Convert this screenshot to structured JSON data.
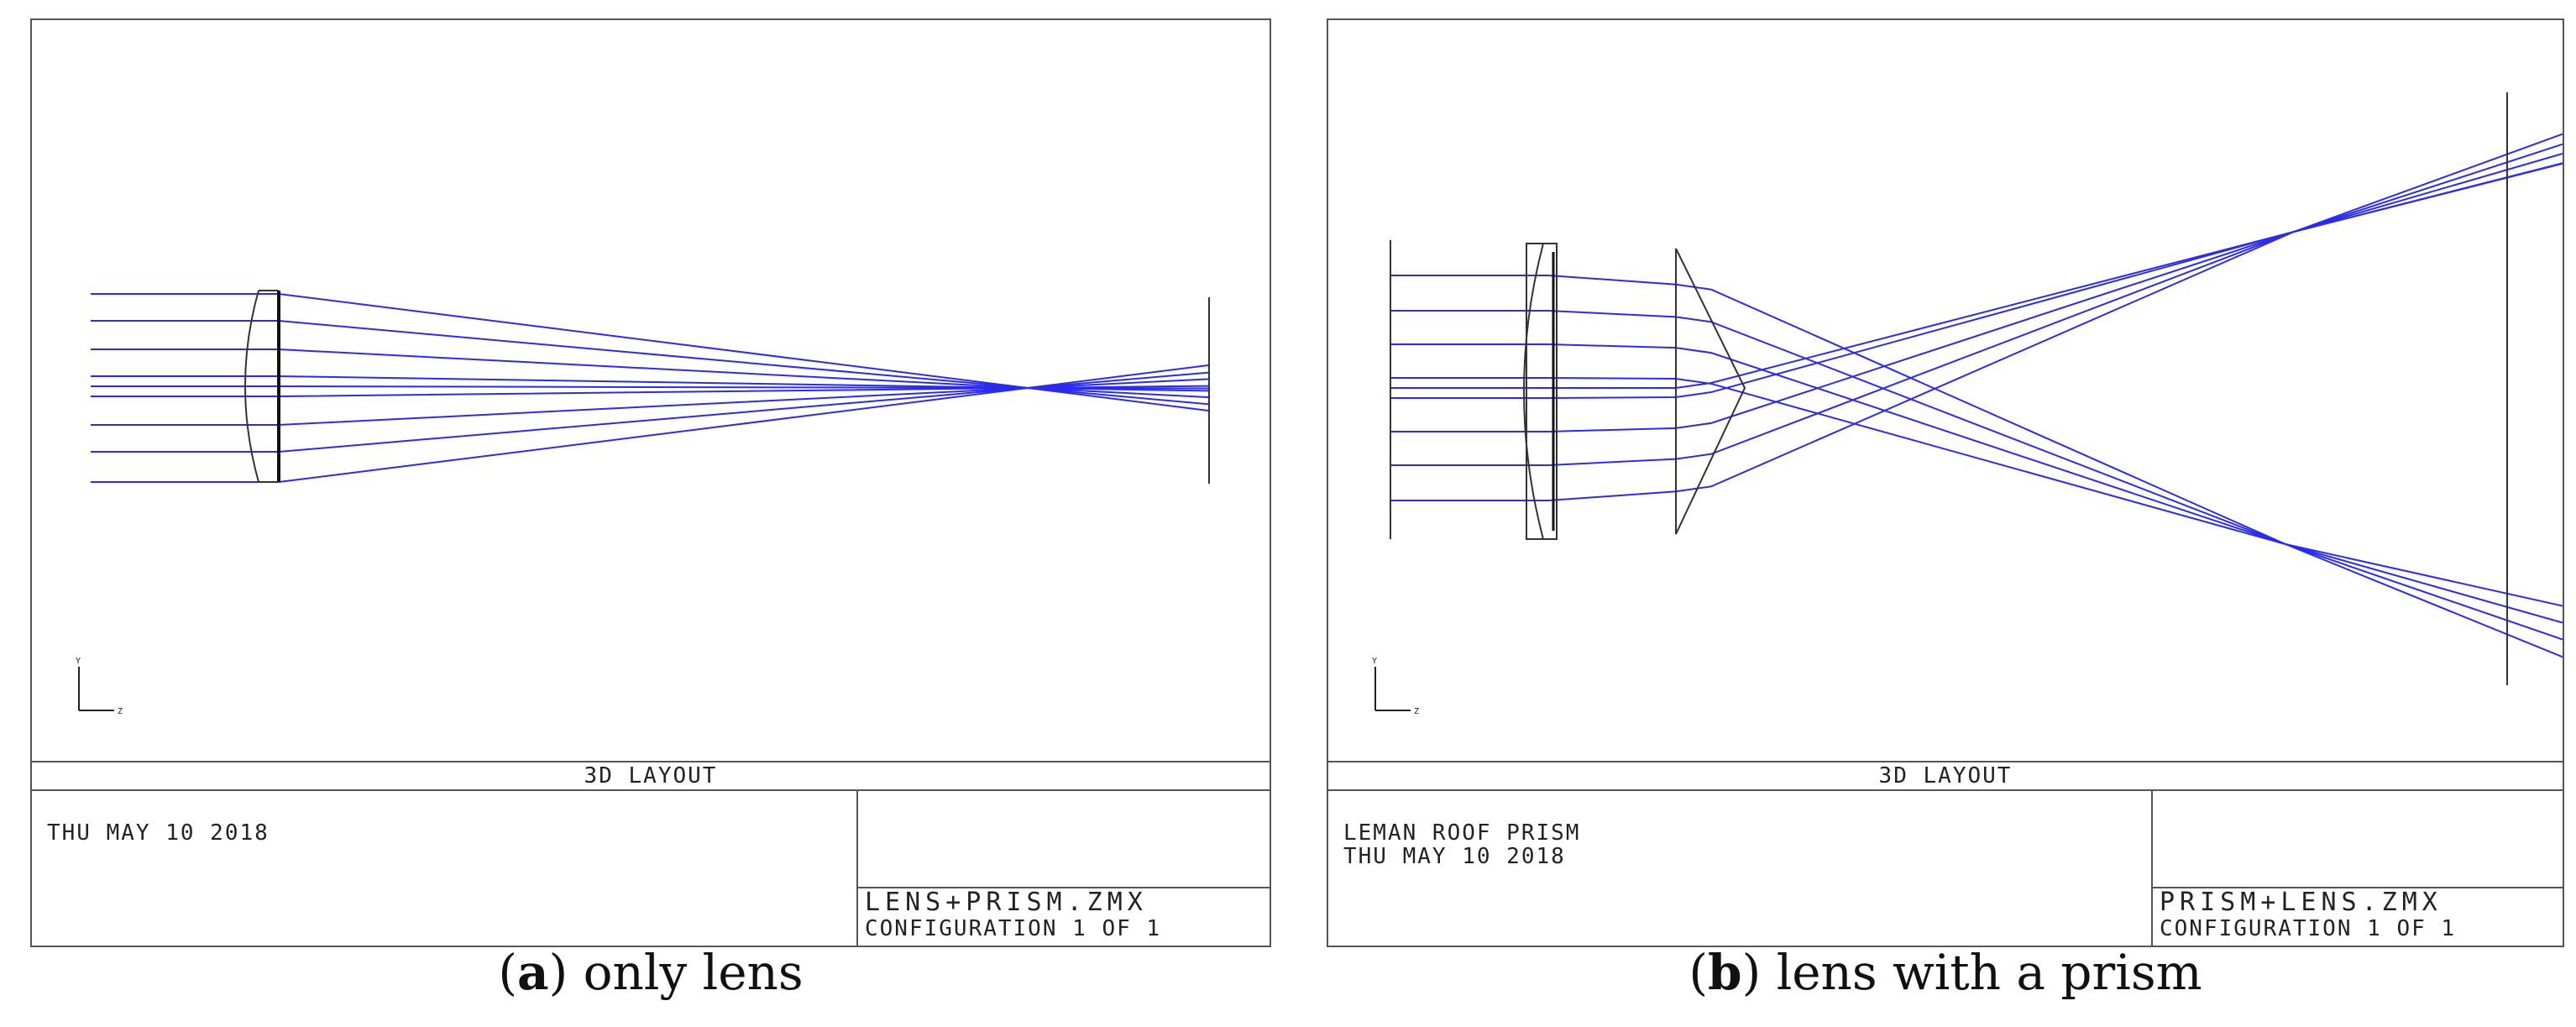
{
  "colors": {
    "ray": "#2b2bee",
    "frame": "#555555",
    "element": "#333333"
  },
  "panels": [
    {
      "title": "3D LAYOUT",
      "header_lines": [
        "THU MAY 10 2018"
      ],
      "file_name": "LENS+PRISM.ZMX",
      "configuration": "CONFIGURATION 1 OF 1",
      "axis_labels": {
        "vertical": "Y",
        "horizontal": "Z"
      },
      "caption": {
        "letter": "a",
        "text": "only lens"
      },
      "optical_elements": [
        "convex-lens",
        "image-plane"
      ]
    },
    {
      "title": "3D LAYOUT",
      "header_lines": [
        "LEMAN ROOF PRISM",
        "THU MAY 10 2018"
      ],
      "file_name": "PRISM+LENS.ZMX",
      "configuration": "CONFIGURATION 1 OF 1",
      "axis_labels": {
        "vertical": "Y",
        "horizontal": "Z"
      },
      "caption": {
        "letter": "b",
        "text": "lens with a prism"
      },
      "optical_elements": [
        "convex-lens",
        "roof-prism",
        "image-plane"
      ]
    }
  ]
}
